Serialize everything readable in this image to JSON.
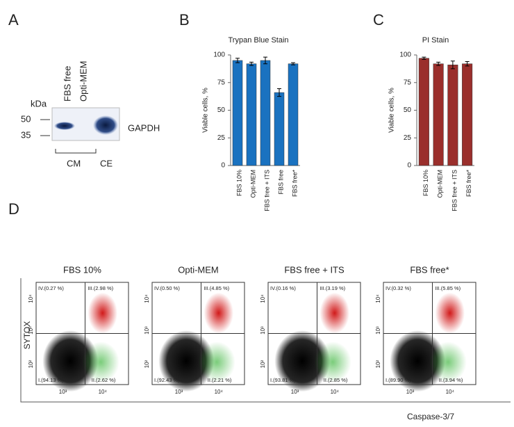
{
  "panel_labels": [
    "A",
    "B",
    "C",
    "D"
  ],
  "blot": {
    "lanes": [
      "FBS free",
      "Opti-MEM"
    ],
    "kda_label": "kDa",
    "markers": [
      "50",
      "35"
    ],
    "protein": "GAPDH",
    "groups": [
      "CM",
      "CE"
    ]
  },
  "chart_data": [
    {
      "type": "bar",
      "title": "Trypan Blue Stain",
      "y_label": "Viable cells, %",
      "categories": [
        "FBS 10%",
        "Opti-MEM",
        "FBS free + ITS",
        "FBS free",
        "FBS free*"
      ],
      "values": [
        95,
        92,
        95,
        66,
        92
      ],
      "errors": [
        2,
        1.5,
        3,
        3.5,
        1
      ],
      "color": "#1a72c0",
      "ylim": [
        0,
        100
      ],
      "yticks": [
        0,
        25,
        50,
        75,
        100
      ]
    },
    {
      "type": "bar",
      "title": "PI Stain",
      "y_label": "Viable cells, %",
      "categories": [
        "FBS 10%",
        "Opti-MEM",
        "FBS free + ITS",
        "FBS free*"
      ],
      "values": [
        97,
        92,
        91,
        92
      ],
      "errors": [
        1,
        1.5,
        3.5,
        2
      ],
      "color": "#9a2f2c",
      "ylim": [
        0,
        100
      ],
      "yticks": [
        0,
        25,
        50,
        75,
        100
      ]
    }
  ],
  "flow": {
    "y_label": "SYTOX",
    "x_label": "Caspase-3/7",
    "x_ticks": [
      "10³",
      "10⁴"
    ],
    "y_ticks": [
      "10⁴",
      "10³",
      "10²"
    ],
    "plots": [
      {
        "title": "FBS 10%",
        "quadrants": [
          "IV.(0.27 %)",
          "III.(2.98 %)",
          "I.(94.13 %)",
          "II.(2.62 %)"
        ]
      },
      {
        "title": "Opti-MEM",
        "quadrants": [
          "IV.(0.50 %)",
          "III.(4.85 %)",
          "I.(92.43 %)",
          "II.(2.21 %)"
        ]
      },
      {
        "title": "FBS free + ITS",
        "quadrants": [
          "IV.(0.16 %)",
          "III.(3.19 %)",
          "I.(93.81 %)",
          "II.(2.85 %)"
        ]
      },
      {
        "title": "FBS free*",
        "quadrants": [
          "IV.(0.32 %)",
          "III.(5.85 %)",
          "I.(89.90 %)",
          "II.(3.94 %)"
        ]
      }
    ]
  }
}
